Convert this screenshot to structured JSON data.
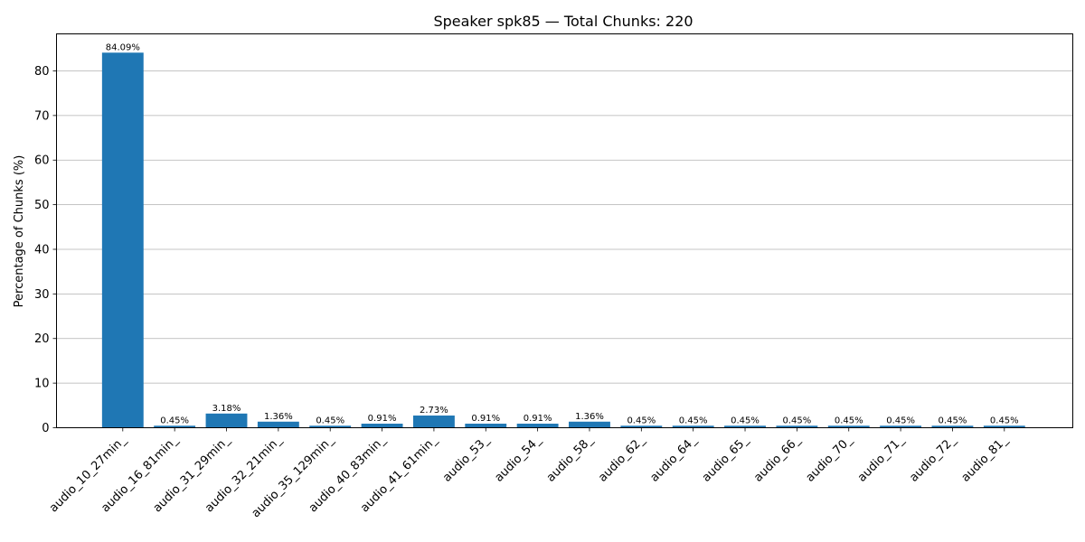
{
  "chart_data": {
    "type": "bar",
    "title": "Speaker spk85 — Total Chunks: 220",
    "xlabel": "",
    "ylabel": "Percentage of Chunks (%)",
    "ylim": [
      0,
      88.3
    ],
    "yticks": [
      0,
      10,
      20,
      30,
      40,
      50,
      60,
      70,
      80
    ],
    "grid": "y",
    "bar_color": "#1f77b4",
    "categories": [
      "audio_10_27min_",
      "audio_16_81min_",
      "audio_31_29min_",
      "audio_32_21min_",
      "audio_35_129min_",
      "audio_40_83min_",
      "audio_41_61min_",
      "audio_53_",
      "audio_54_",
      "audio_58_",
      "audio_62_",
      "audio_64_",
      "audio_65_",
      "audio_66_",
      "audio_70_",
      "audio_71_",
      "audio_72_",
      "audio_81_"
    ],
    "values": [
      84.09,
      0.45,
      3.18,
      1.36,
      0.45,
      0.91,
      2.73,
      0.91,
      0.91,
      1.36,
      0.45,
      0.45,
      0.45,
      0.45,
      0.45,
      0.45,
      0.45,
      0.45
    ],
    "data_labels": [
      "84.09%",
      "0.45%",
      "3.18%",
      "1.36%",
      "0.45%",
      "0.91%",
      "2.73%",
      "0.91%",
      "0.91%",
      "1.36%",
      "0.45%",
      "0.45%",
      "0.45%",
      "0.45%",
      "0.45%",
      "0.45%",
      "0.45%",
      "0.45%"
    ]
  }
}
